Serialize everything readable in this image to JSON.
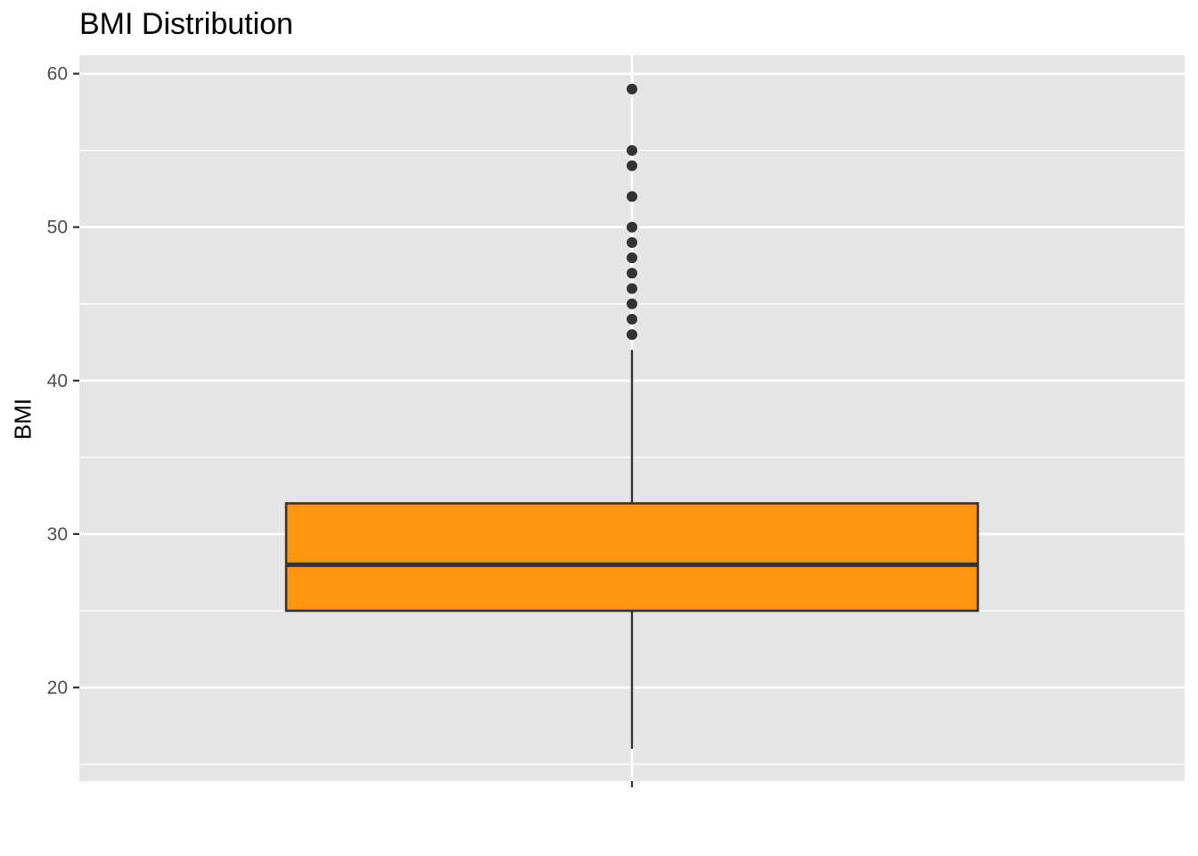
{
  "chart_data": {
    "type": "boxplot",
    "title": "BMI Distribution",
    "xlabel": "",
    "ylabel": "BMI",
    "ylim": [
      13.9,
      61.2
    ],
    "yticks": [
      20,
      30,
      40,
      50,
      60
    ],
    "grid": true,
    "box": {
      "fill": "#FF940E",
      "stroke": "#333333",
      "lower_whisker": 16,
      "q1": 25,
      "median": 28,
      "q3": 32,
      "upper_whisker": 42,
      "outliers": [
        43,
        44,
        45,
        46,
        47,
        48,
        49,
        50,
        52,
        54,
        55,
        59
      ]
    }
  }
}
